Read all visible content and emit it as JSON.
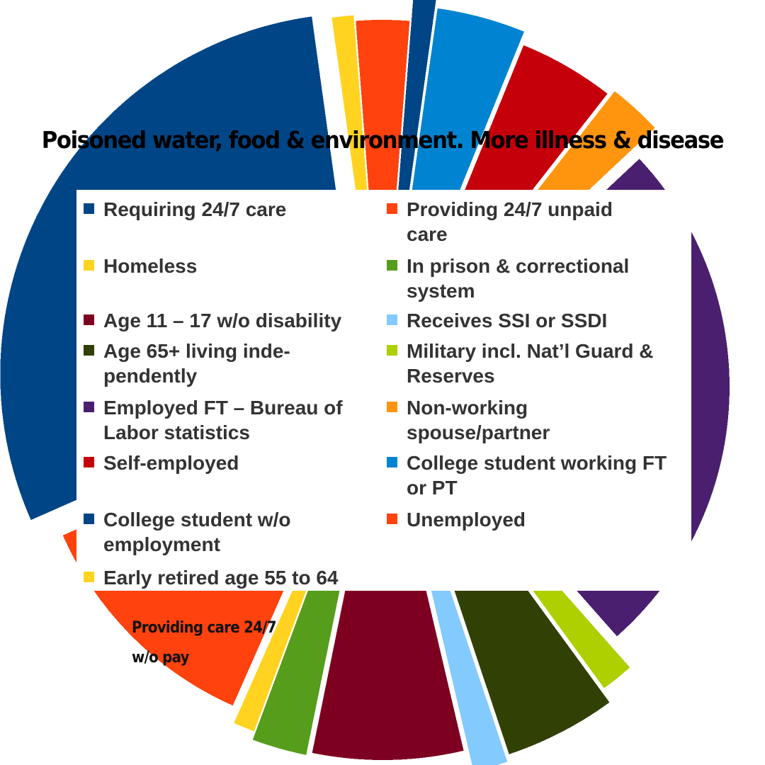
{
  "title": "Poisoned water, food & environment. More illness & disease",
  "annotation": "Providing care 24/7 w/o pay",
  "chart_data": {
    "type": "pie",
    "title": "Poisoned water, food & environment. More illness & disease",
    "legend_position": "center",
    "legend": [
      {
        "label": "Requiring 24/7 care",
        "color": "#004586"
      },
      {
        "label": "Providing 24/7 unpaid care",
        "color": "#ff420e"
      },
      {
        "label": "Homeless",
        "color": "#ffd320"
      },
      {
        "label": "In prison & correctional system",
        "color": "#579d1c"
      },
      {
        "label": "Age 11 – 17 w/o disability",
        "color": "#7e0021"
      },
      {
        "label": "Receives SSI or SSDI",
        "color": "#83caff"
      },
      {
        "label": "Age 65+ living inde-\npendently",
        "color": "#314004"
      },
      {
        "label": "Military incl. Nat’l Guard & Reserves",
        "color": "#aecf00"
      },
      {
        "label": "Employed FT – Bureau of Labor statistics",
        "color": "#4b1f6f"
      },
      {
        "label": "Non-working spouse/partner",
        "color": "#ff950e"
      },
      {
        "label": "Self-employed",
        "color": "#c5000b"
      },
      {
        "label": "College student working FT or PT",
        "color": "#0084d1"
      },
      {
        "label": "College student w/o employment",
        "color": "#004586"
      },
      {
        "label": "Unemployed",
        "color": "#ff420e"
      },
      {
        "label": "Early retired age 55 to 64",
        "color": "#ffd320"
      }
    ],
    "slices": [
      {
        "label": "Employed FT – Bureau of Labor statistics",
        "value": 26,
        "color": "#4b1f6f"
      },
      {
        "label": "Military incl. Nat’l Guard & Reserves",
        "value": 1.5,
        "color": "#aecf00"
      },
      {
        "label": "Age 65+ living inde-\npendently",
        "value": 5,
        "color": "#314004"
      },
      {
        "label": "Receives SSI or SSDI",
        "value": 1.5,
        "color": "#83caff"
      },
      {
        "label": "Age 11 – 17 w/o disability",
        "value": 7,
        "color": "#7e0021"
      },
      {
        "label": "In prison & correctional system",
        "value": 2.5,
        "color": "#579d1c"
      },
      {
        "label": "Early retired age 55 to 64",
        "value": 1,
        "color": "#ffd320"
      },
      {
        "label": "Providing 24/7 unpaid care",
        "value": 12,
        "color": "#ff420e"
      },
      {
        "label": "Requiring 24/7 care",
        "value": 30,
        "color": "#004586"
      },
      {
        "label": "Homeless",
        "value": 1,
        "color": "#ffd320"
      },
      {
        "label": "Unemployed",
        "value": 2.5,
        "color": "#ff420e"
      },
      {
        "label": "College student w/o employment",
        "value": 1,
        "color": "#004586"
      },
      {
        "label": "College student working FT or PT",
        "value": 4,
        "color": "#0084d1"
      },
      {
        "label": "Self-employed",
        "value": 4.5,
        "color": "#c5000b"
      },
      {
        "label": "Non-working spouse/partner",
        "value": 2.5,
        "color": "#ff950e"
      }
    ]
  }
}
